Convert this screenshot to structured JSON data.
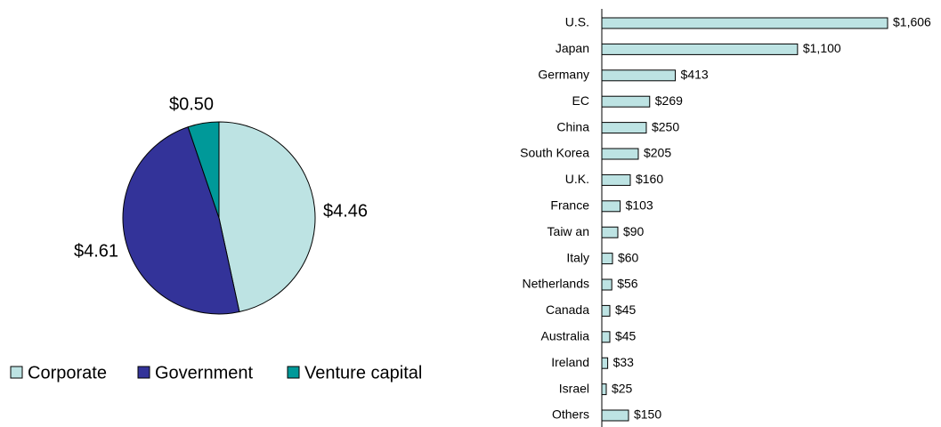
{
  "chart_data": [
    {
      "type": "pie",
      "categories": [
        "Corporate",
        "Government",
        "Venture capital"
      ],
      "values": [
        4.46,
        4.61,
        0.5
      ],
      "value_labels": [
        "$4.46",
        "$4.61",
        "$0.50"
      ],
      "colors": [
        "#bde3e3",
        "#333399",
        "#009999"
      ]
    },
    {
      "type": "hbar",
      "categories": [
        "U.S.",
        "Japan",
        "Germany",
        "EC",
        "China",
        "South Korea",
        "U.K.",
        "France",
        "Taiw an",
        "Italy",
        "Netherlands",
        "Canada",
        "Australia",
        "Ireland",
        "Israel",
        "Others"
      ],
      "values": [
        1606,
        1100,
        413,
        269,
        250,
        205,
        160,
        103,
        90,
        60,
        56,
        45,
        45,
        33,
        25,
        150
      ],
      "value_labels": [
        "$1,606",
        "$1,100",
        "$413",
        "$269",
        "$250",
        "$205",
        "$160",
        "$103",
        "$90",
        "$60",
        "$56",
        "$45",
        "$45",
        "$33",
        "$25",
        "$150"
      ],
      "color": "#bde3e3"
    }
  ]
}
